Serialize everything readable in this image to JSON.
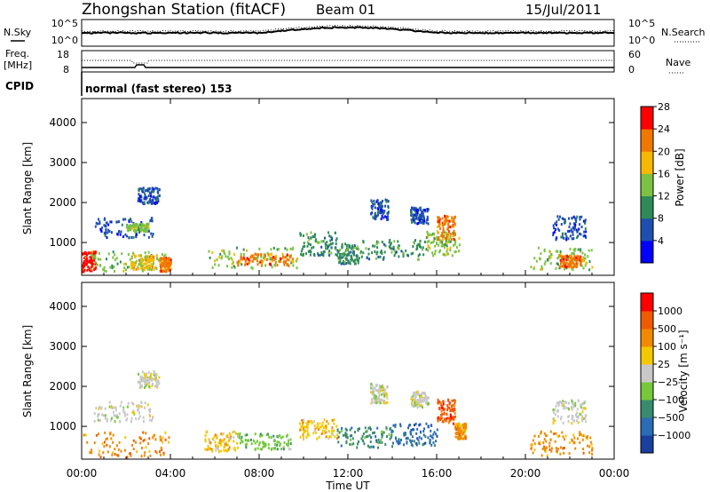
{
  "header": {
    "station": "Zhongshan Station (fitACF)",
    "beam": "Beam 01",
    "date": "15/Jul/2011"
  },
  "top_panels": {
    "nsky_label": "N.Sky",
    "nsky_ticks": [
      "10^5",
      "10^0"
    ],
    "nsearch_label": "N.Search",
    "nsearch_ticks": [
      "10^5",
      "10^0"
    ],
    "freq_label": "Freq.",
    "freq_unit": "[MHz]",
    "freq_ticks": [
      "18",
      "8"
    ],
    "nave_label": "Nave",
    "nave_ticks": [
      "60",
      "0"
    ],
    "cpid_label": "CPID",
    "cpid_text": "normal (fast stereo) 153"
  },
  "axes": {
    "ylabel": "Slant Range [km]",
    "xlabel": "Time UT",
    "yticks": [
      1000,
      2000,
      3000,
      4000
    ],
    "ytick_labels": [
      "1000",
      "2000",
      "3000",
      "4000"
    ],
    "xticks": [
      0,
      4,
      8,
      12,
      16,
      20,
      24
    ],
    "xtick_labels": [
      "00:00",
      "04:00",
      "08:00",
      "12:00",
      "16:00",
      "20:00",
      "00:00"
    ]
  },
  "colorbars": {
    "power": {
      "label": "Power [dB]",
      "tick_labels": [
        "4",
        "8",
        "12",
        "16",
        "20",
        "24",
        "28"
      ],
      "colors": [
        "#0000ff",
        "#1f4fae",
        "#2e8b57",
        "#7cc242",
        "#f6b800",
        "#f07800",
        "#ff0000"
      ]
    },
    "velocity": {
      "label": "Velocity [m s⁻¹]",
      "tick_labels": [
        "1000",
        "500",
        "100",
        "25",
        "−25",
        "−100",
        "−500",
        "−1000"
      ],
      "colors": [
        "#1b3f9e",
        "#2a6cb5",
        "#3a8a6f",
        "#74c83a",
        "#c8c8c8",
        "#f4c800",
        "#f08a00",
        "#f05a00",
        "#ff0000"
      ]
    }
  },
  "chart_data": [
    {
      "type": "heatmap",
      "title": "Power",
      "xlabel": "Time UT",
      "ylabel": "Slant Range [km]",
      "xlim": [
        0,
        24
      ],
      "ylim": [
        180,
        4600
      ],
      "regions": [
        {
          "t": [
            0.0,
            0.6
          ],
          "r": [
            300,
            800
          ],
          "level": 6
        },
        {
          "t": [
            0.4,
            3.8
          ],
          "r": [
            300,
            800
          ],
          "level": 3
        },
        {
          "t": [
            2.2,
            3.3
          ],
          "r": [
            350,
            700
          ],
          "level": 4
        },
        {
          "t": [
            3.5,
            4.0
          ],
          "r": [
            300,
            650
          ],
          "level": 5
        },
        {
          "t": [
            0.5,
            3.2
          ],
          "r": [
            1150,
            1650
          ],
          "level": 1
        },
        {
          "t": [
            2.0,
            3.0
          ],
          "r": [
            1300,
            1500
          ],
          "level": 3
        },
        {
          "t": [
            2.5,
            3.5
          ],
          "r": [
            2000,
            2400
          ],
          "level": 1
        },
        {
          "t": [
            5.5,
            9.8
          ],
          "r": [
            380,
            900
          ],
          "level": 3
        },
        {
          "t": [
            7.0,
            9.5
          ],
          "r": [
            450,
            750
          ],
          "level": 5
        },
        {
          "t": [
            9.8,
            11.5
          ],
          "r": [
            700,
            1300
          ],
          "level": 2
        },
        {
          "t": [
            11.5,
            12.5
          ],
          "r": [
            500,
            1000
          ],
          "level": 2
        },
        {
          "t": [
            12.5,
            15.5
          ],
          "r": [
            600,
            1100
          ],
          "level": 2
        },
        {
          "t": [
            13.0,
            13.8
          ],
          "r": [
            1600,
            2100
          ],
          "level": 1
        },
        {
          "t": [
            14.8,
            15.6
          ],
          "r": [
            1500,
            1900
          ],
          "level": 1
        },
        {
          "t": [
            15.5,
            17.0
          ],
          "r": [
            700,
            1300
          ],
          "level": 3
        },
        {
          "t": [
            16.0,
            16.8
          ],
          "r": [
            1100,
            1700
          ],
          "level": 5
        },
        {
          "t": [
            20.2,
            23.0
          ],
          "r": [
            350,
            900
          ],
          "level": 3
        },
        {
          "t": [
            21.5,
            22.5
          ],
          "r": [
            400,
            700
          ],
          "level": 5
        },
        {
          "t": [
            21.2,
            22.7
          ],
          "r": [
            1100,
            1700
          ],
          "level": 1
        }
      ]
    },
    {
      "type": "heatmap",
      "title": "Velocity",
      "xlabel": "Time UT",
      "ylabel": "Slant Range [km]",
      "xlim": [
        0,
        24
      ],
      "ylim": [
        180,
        4600
      ],
      "regions": [
        {
          "t": [
            0.0,
            3.9
          ],
          "r": [
            250,
            900
          ],
          "level": 6
        },
        {
          "t": [
            0.5,
            3.2
          ],
          "r": [
            1150,
            1650
          ],
          "level": 4
        },
        {
          "t": [
            2.5,
            3.5
          ],
          "r": [
            2000,
            2400
          ],
          "level": 4
        },
        {
          "t": [
            5.5,
            7.0
          ],
          "r": [
            400,
            900
          ],
          "level": 5
        },
        {
          "t": [
            7.0,
            9.5
          ],
          "r": [
            450,
            850
          ],
          "level": 3
        },
        {
          "t": [
            9.8,
            11.5
          ],
          "r": [
            700,
            1200
          ],
          "level": 5
        },
        {
          "t": [
            11.5,
            14.0
          ],
          "r": [
            500,
            1000
          ],
          "level": 2
        },
        {
          "t": [
            14.0,
            16.0
          ],
          "r": [
            550,
            1100
          ],
          "level": 1
        },
        {
          "t": [
            13.0,
            13.8
          ],
          "r": [
            1600,
            2100
          ],
          "level": 4
        },
        {
          "t": [
            14.8,
            15.6
          ],
          "r": [
            1500,
            1900
          ],
          "level": 4
        },
        {
          "t": [
            16.0,
            16.8
          ],
          "r": [
            1100,
            1700
          ],
          "level": 7
        },
        {
          "t": [
            16.8,
            17.3
          ],
          "r": [
            700,
            1100
          ],
          "level": 6
        },
        {
          "t": [
            20.2,
            23.0
          ],
          "r": [
            300,
            900
          ],
          "level": 6
        },
        {
          "t": [
            21.2,
            22.7
          ],
          "r": [
            1100,
            1700
          ],
          "level": 4
        }
      ]
    }
  ]
}
